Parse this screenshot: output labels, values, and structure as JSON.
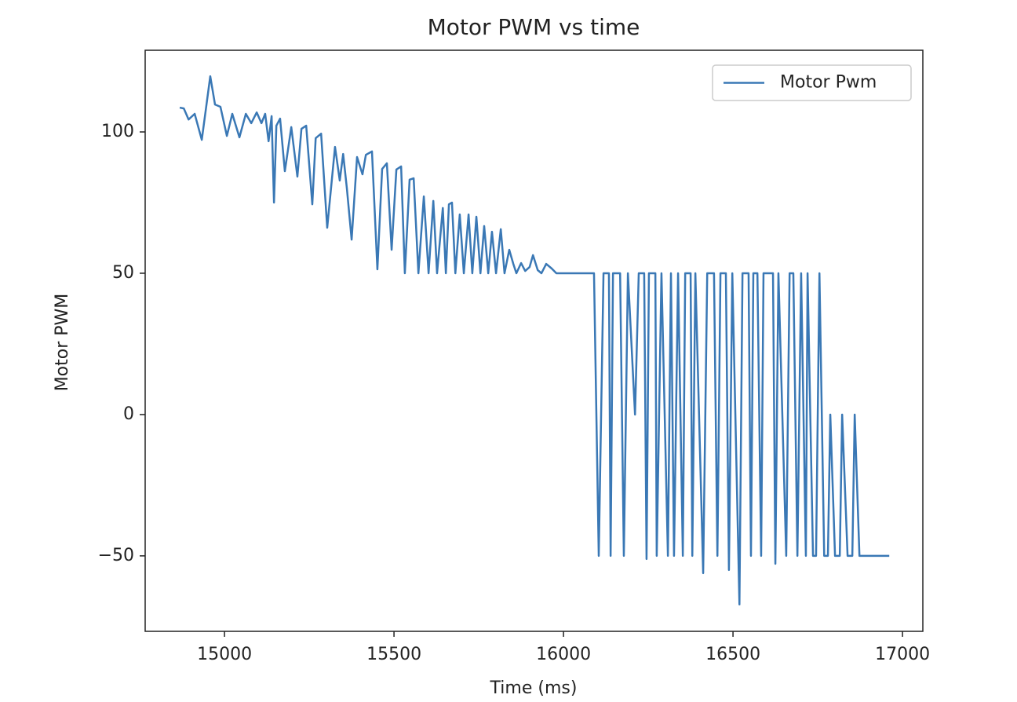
{
  "chart_data": {
    "type": "line",
    "title": "Motor PWM vs time",
    "x_label": "Time (ms)",
    "y_label": "Motor PWM",
    "x": [
      14868,
      14880,
      14894,
      14912,
      14933,
      14958,
      14972,
      14988,
      15007,
      15023,
      15044,
      15063,
      15079,
      15095,
      15109,
      15120,
      15130,
      15139,
      15146,
      15153,
      15164,
      15178,
      15197,
      15215,
      15227,
      15241,
      15259,
      15269,
      15285,
      15303,
      15326,
      15340,
      15350,
      15361,
      15375,
      15391,
      15407,
      15417,
      15435,
      15451,
      15465,
      15479,
      15493,
      15507,
      15521,
      15532,
      15546,
      15558,
      15572,
      15588,
      15602,
      15616,
      15627,
      15644,
      15653,
      15662,
      15671,
      15681,
      15694,
      15706,
      15720,
      15731,
      15743,
      15755,
      15766,
      15778,
      15789,
      15801,
      15815,
      15826,
      15840,
      15852,
      15861,
      15875,
      15887,
      15900,
      15910,
      15924,
      15935,
      15949,
      15965,
      15979,
      16090,
      16104,
      16118,
      16134,
      16139,
      16146,
      16167,
      16178,
      16190,
      16211,
      16222,
      16238,
      16245,
      16252,
      16271,
      16275,
      16289,
      16308,
      16317,
      16326,
      16338,
      16352,
      16359,
      16375,
      16380,
      16389,
      16412,
      16424,
      16444,
      16454,
      16463,
      16479,
      16488,
      16498,
      16519,
      16528,
      16546,
      16553,
      16560,
      16572,
      16583,
      16590,
      16618,
      16625,
      16634,
      16657,
      16667,
      16678,
      16690,
      16701,
      16715,
      16720,
      16736,
      16745,
      16755,
      16769,
      16780,
      16787,
      16801,
      16815,
      16822,
      16838,
      16852,
      16859,
      16873,
      16961
    ],
    "series": [
      {
        "name": "Motor Pwm",
        "color": "#3a78b5",
        "values": [
          108.6,
          108.3,
          104.4,
          106.4,
          97.2,
          119.7,
          109.7,
          108.9,
          98.6,
          106.4,
          98.1,
          106.4,
          103.1,
          106.9,
          103.1,
          106.4,
          96.7,
          105.6,
          75,
          102.2,
          104.7,
          86.1,
          101.7,
          84.2,
          101.1,
          102.2,
          74.4,
          97.8,
          99.4,
          66.1,
          94.7,
          82.8,
          92.2,
          80,
          61.9,
          91.1,
          85,
          91.9,
          93.1,
          51.4,
          86.9,
          88.9,
          58.3,
          86.7,
          87.8,
          50,
          83.1,
          83.6,
          50,
          77.2,
          50,
          75.6,
          50,
          73.1,
          50,
          74.4,
          75,
          50,
          70.8,
          50,
          70.8,
          50,
          70,
          50,
          66.7,
          50,
          64.7,
          50,
          65.6,
          50,
          58.3,
          53.3,
          50,
          53.6,
          50.8,
          52.2,
          56.4,
          51.1,
          50,
          53.3,
          51.7,
          50,
          50,
          -50,
          50,
          50,
          -50,
          50,
          50,
          -50,
          50,
          0,
          50,
          50,
          -51.1,
          50,
          50,
          -50,
          50,
          -50,
          50,
          -50,
          50,
          -50,
          50,
          50,
          -50,
          50,
          -56.1,
          50,
          50,
          -50,
          50,
          50,
          -55,
          50,
          -67.2,
          50,
          50,
          -50,
          50,
          50,
          -50,
          50,
          50,
          -52.8,
          50,
          -50,
          50,
          50,
          -50,
          50,
          -50,
          50,
          -50,
          -50,
          50,
          -50,
          -50,
          0,
          -50,
          -50,
          0,
          -50,
          -50,
          0,
          -50,
          -50
        ]
      }
    ],
    "xlim": [
      14766,
      17060
    ],
    "ylim": [
      -76.7,
      128.9
    ],
    "xticks": [
      15000,
      15500,
      16000,
      16500,
      17000
    ],
    "yticks": [
      {
        "value": -50,
        "label": "−50"
      },
      0,
      50,
      100
    ],
    "legend": "upper right"
  }
}
